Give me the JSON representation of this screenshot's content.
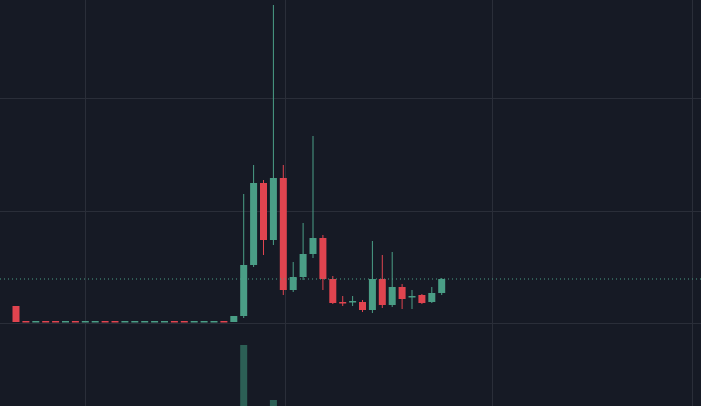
{
  "chart_data": {
    "type": "candlestick",
    "up_color": "#4a9e86",
    "down_color": "#e0444f",
    "volume_color": "#2c5f55",
    "grid": true,
    "ylim": [
      0,
      406
    ],
    "yticks": [
      83,
      195,
      308
    ],
    "open": [
      100,
      85,
      84,
      85,
      85,
      84,
      85,
      84,
      84,
      85,
      85,
      84,
      84,
      84,
      84,
      84,
      85,
      85,
      84,
      84,
      84,
      85,
      84,
      90,
      141,
      223,
      166,
      228,
      116,
      129,
      152,
      168,
      127,
      104,
      104,
      104,
      96,
      127,
      101,
      119,
      109,
      111,
      104,
      113
    ],
    "close": [
      84,
      84,
      85,
      84,
      84,
      85,
      84,
      85,
      85,
      84,
      84,
      85,
      85,
      85,
      85,
      85,
      84,
      84,
      85,
      85,
      85,
      84,
      90,
      141,
      223,
      166,
      228,
      116,
      129,
      152,
      168,
      127,
      103,
      103,
      105,
      96,
      127,
      101,
      119,
      107,
      110,
      103,
      113,
      127
    ],
    "high": [
      100,
      85,
      85,
      85,
      85,
      85,
      85,
      85,
      85,
      85,
      85,
      85,
      85,
      85,
      85,
      85,
      85,
      85,
      85,
      85,
      85,
      85,
      90,
      212,
      241,
      226,
      401,
      241,
      144,
      183,
      270,
      171,
      130,
      110,
      110,
      106,
      165,
      151,
      154,
      122,
      116,
      112,
      119,
      128
    ],
    "low": [
      84,
      84,
      84,
      84,
      84,
      84,
      84,
      84,
      84,
      84,
      84,
      84,
      84,
      84,
      84,
      84,
      84,
      84,
      84,
      84,
      84,
      84,
      84,
      88,
      139,
      151,
      161,
      111,
      114,
      126,
      148,
      116,
      102,
      100,
      100,
      94,
      93,
      98,
      99,
      97,
      97,
      102,
      103,
      111
    ],
    "volume": [
      null,
      null,
      null,
      null,
      null,
      null,
      null,
      null,
      null,
      null,
      null,
      null,
      null,
      null,
      null,
      null,
      null,
      null,
      null,
      null,
      null,
      null,
      null,
      61,
      null,
      null,
      6,
      null,
      null,
      null,
      null,
      null,
      null,
      null,
      null,
      null,
      null,
      null,
      null,
      null,
      null,
      null,
      null,
      null
    ]
  }
}
